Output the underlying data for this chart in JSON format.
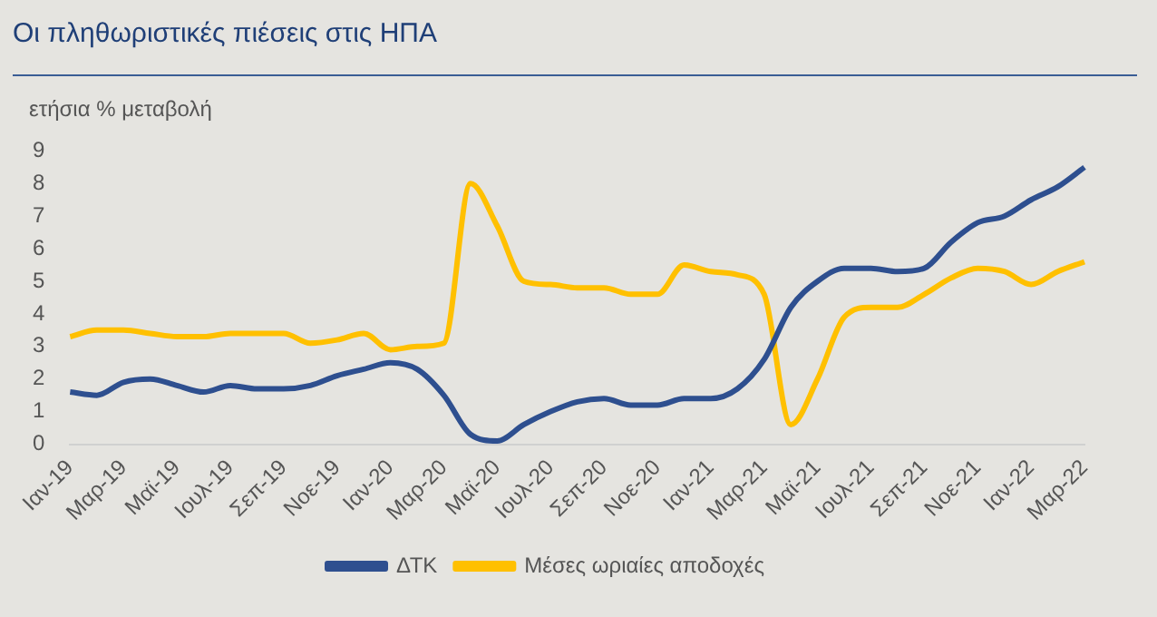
{
  "chart_data": {
    "type": "line",
    "title": "Οι πληθωριστικές πιέσεις στις ΗΠΑ",
    "ylabel": "ετήσια % μεταβολή",
    "categories": [
      "Ιαν-19",
      null,
      "Μαρ-19",
      null,
      "Μαϊ-19",
      null,
      "Ιουλ-19",
      null,
      "Σεπ-19",
      null,
      "Νοε-19",
      null,
      "Ιαν-20",
      null,
      "Μαρ-20",
      null,
      "Μαϊ-20",
      null,
      "Ιουλ-20",
      null,
      "Σεπ-20",
      null,
      "Νοε-20",
      null,
      "Ιαν-21",
      null,
      "Μαρ-21",
      null,
      "Μαϊ-21",
      null,
      "Ιουλ-21",
      null,
      "Σεπ-21",
      null,
      "Νοε-21",
      null,
      "Ιαν-22",
      null,
      "Μαρ-22"
    ],
    "series": [
      {
        "name": "ΔΤΚ",
        "color": "#2e4f8f",
        "values": [
          1.6,
          1.5,
          1.9,
          2.0,
          1.8,
          1.6,
          1.8,
          1.7,
          1.7,
          1.8,
          2.1,
          2.3,
          2.5,
          2.3,
          1.5,
          0.3,
          0.1,
          0.6,
          1.0,
          1.3,
          1.4,
          1.2,
          1.2,
          1.4,
          1.4,
          1.7,
          2.6,
          4.2,
          5.0,
          5.4,
          5.4,
          5.3,
          5.4,
          6.2,
          6.8,
          7.0,
          7.5,
          7.9,
          8.5
        ]
      },
      {
        "name": "Μέσες ωριαίες αποδοχές",
        "color": "#ffc000",
        "values": [
          3.3,
          3.5,
          3.5,
          3.4,
          3.3,
          3.3,
          3.4,
          3.4,
          3.4,
          3.1,
          3.2,
          3.4,
          2.9,
          3.0,
          3.1,
          8.0,
          6.7,
          5.0,
          4.9,
          4.8,
          4.8,
          4.6,
          4.6,
          5.5,
          5.3,
          5.2,
          4.6,
          0.6,
          2.0,
          3.9,
          4.2,
          4.2,
          4.6,
          5.1,
          5.4,
          5.3,
          4.9,
          5.3,
          5.6
        ]
      }
    ],
    "ylim": [
      0,
      9
    ],
    "yticks": [
      0,
      1,
      2,
      3,
      4,
      5,
      6,
      7,
      8,
      9
    ],
    "grid": false,
    "legend": "bottom",
    "marker": "none",
    "line_style": "solid"
  }
}
